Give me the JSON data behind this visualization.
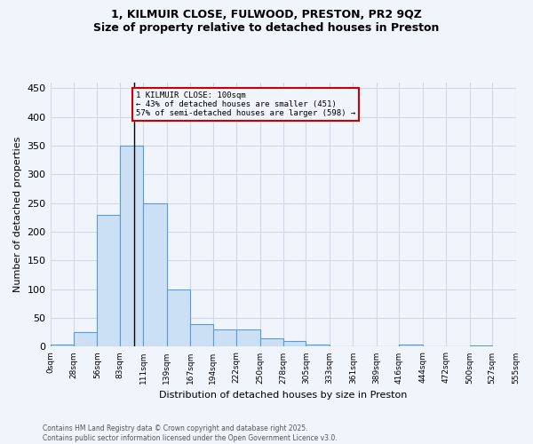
{
  "title_line1": "1, KILMUIR CLOSE, FULWOOD, PRESTON, PR2 9QZ",
  "title_line2": "Size of property relative to detached houses in Preston",
  "xlabel": "Distribution of detached houses by size in Preston",
  "ylabel": "Number of detached properties",
  "bar_values": [
    3,
    25,
    230,
    350,
    250,
    100,
    40,
    30,
    30,
    15,
    10,
    4,
    0,
    1,
    0,
    3,
    0,
    0,
    2
  ],
  "bar_left_edges": [
    0,
    28,
    56,
    83,
    111,
    139,
    167,
    194,
    222,
    250,
    278,
    305,
    333,
    361,
    389,
    416,
    444,
    472,
    500
  ],
  "bar_right_end": 527,
  "bar_color": "#cce0f5",
  "bar_edge_color": "#5b9bd5",
  "grid_color": "#d0d8e8",
  "bg_color": "#f0f4fb",
  "vline_x": 100,
  "annotation_text": "1 KILMUIR CLOSE: 100sqm\n← 43% of detached houses are smaller (451)\n57% of semi-detached houses are larger (598) →",
  "annotation_box_color": "#cc0000",
  "ylim": [
    0,
    460
  ],
  "yticks": [
    0,
    50,
    100,
    150,
    200,
    250,
    300,
    350,
    400,
    450
  ],
  "xtick_positions": [
    0,
    28,
    56,
    83,
    111,
    139,
    167,
    194,
    222,
    250,
    278,
    305,
    333,
    361,
    389,
    416,
    444,
    472,
    500,
    527,
    555
  ],
  "xtick_labels": [
    "0sqm",
    "28sqm",
    "56sqm",
    "83sqm",
    "111sqm",
    "139sqm",
    "167sqm",
    "194sqm",
    "222sqm",
    "250sqm",
    "278sqm",
    "305sqm",
    "333sqm",
    "361sqm",
    "389sqm",
    "416sqm",
    "444sqm",
    "472sqm",
    "500sqm",
    "527sqm",
    "555sqm"
  ],
  "xlim": [
    0,
    555
  ],
  "footer_line1": "Contains HM Land Registry data © Crown copyright and database right 2025.",
  "footer_line2": "Contains public sector information licensed under the Open Government Licence v3.0."
}
